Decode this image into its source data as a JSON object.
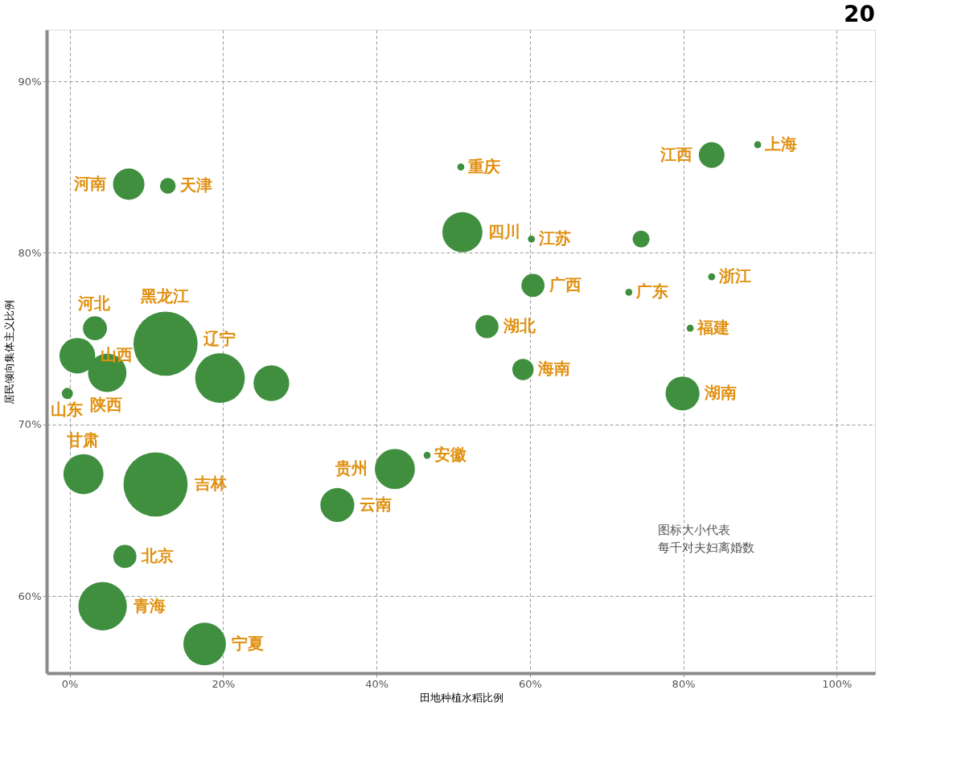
{
  "chart_data": {
    "type": "bubble",
    "title": "20",
    "xlabel": "田地种植水稻比例",
    "ylabel": "居民倾向集体主义比例",
    "x": [
      7.7,
      12.8,
      51.0,
      89.7,
      83.7,
      51.2,
      60.2,
      74.5,
      60.4,
      72.9,
      83.7,
      80.9,
      54.4,
      59.1,
      79.9,
      1.0,
      -0.3,
      3.3,
      4.9,
      12.5,
      19.6,
      26.3,
      46.6,
      42.4,
      34.9,
      1.8,
      11.2,
      7.2,
      4.3,
      17.6
    ],
    "values": [
      84.0,
      83.9,
      85.0,
      86.3,
      85.7,
      81.2,
      80.8,
      80.8,
      78.1,
      77.7,
      78.6,
      75.6,
      75.7,
      73.2,
      71.8,
      74.0,
      71.8,
      75.6,
      73.0,
      74.7,
      72.7,
      72.4,
      68.2,
      67.4,
      65.3,
      67.1,
      66.5,
      62.3,
      59.4,
      57.2
    ],
    "sizes": [
      0.24,
      0.06,
      0.012,
      0.012,
      0.16,
      0.39,
      0.012,
      0.07,
      0.13,
      0.012,
      0.012,
      0.012,
      0.13,
      0.11,
      0.28,
      0.31,
      0.03,
      0.14,
      0.36,
      1,
      0.6,
      0.31,
      0.012,
      0.39,
      0.28,
      0.39,
      1,
      0.13,
      0.57,
      0.44
    ],
    "color": "#3f8f3f",
    "grid": true,
    "xlim": [
      -3,
      105
    ],
    "ylim": [
      55.5,
      93
    ],
    "xticks": [
      {
        "value": 0,
        "label": "0%"
      },
      {
        "value": 20,
        "label": "20%"
      },
      {
        "value": 40,
        "label": "40%"
      },
      {
        "value": 60,
        "label": "60%"
      },
      {
        "value": 80,
        "label": "80%"
      },
      {
        "value": 100,
        "label": "100%"
      }
    ],
    "yticks": [
      {
        "value": 60,
        "label": "60%"
      },
      {
        "value": 70,
        "label": "70%"
      },
      {
        "value": 80,
        "label": "80%"
      },
      {
        "value": 90,
        "label": "90%"
      }
    ],
    "annotations": [
      {
        "text": "河南",
        "x": 7.7,
        "y": 84.0
      },
      {
        "text": "天津",
        "x": 12.8,
        "y": 83.9
      },
      {
        "text": "重庆",
        "x": 51.0,
        "y": 85.0
      },
      {
        "text": "上海",
        "x": 89.7,
        "y": 86.3
      },
      {
        "text": "江西",
        "x": 83.7,
        "y": 85.7
      },
      {
        "text": "四川",
        "x": 51.2,
        "y": 81.2
      },
      {
        "text": "江苏",
        "x": 60.2,
        "y": 80.8
      },
      {
        "text": "广西",
        "x": 60.4,
        "y": 78.1
      },
      {
        "text": "广东",
        "x": 72.9,
        "y": 77.7
      },
      {
        "text": "浙江",
        "x": 83.7,
        "y": 78.6
      },
      {
        "text": "福建",
        "x": 80.9,
        "y": 75.6
      },
      {
        "text": "湖北",
        "x": 54.4,
        "y": 75.7
      },
      {
        "text": "海南",
        "x": 59.1,
        "y": 73.2
      },
      {
        "text": "湖南",
        "x": 79.9,
        "y": 71.8
      },
      {
        "text": "山西",
        "x": 1.0,
        "y": 74.0
      },
      {
        "text": "山东",
        "x": -0.3,
        "y": 71.8
      },
      {
        "text": "河北",
        "x": 3.3,
        "y": 75.6
      },
      {
        "text": "陕西",
        "x": 4.9,
        "y": 73.0
      },
      {
        "text": "黑龙江",
        "x": 12.5,
        "y": 74.7
      },
      {
        "text": "辽宁",
        "x": 19.6,
        "y": 72.7
      },
      {
        "text": "安徽",
        "x": 46.6,
        "y": 68.2
      },
      {
        "text": "贵州",
        "x": 42.4,
        "y": 67.4
      },
      {
        "text": "云南",
        "x": 34.9,
        "y": 65.3
      },
      {
        "text": "甘肃",
        "x": 1.8,
        "y": 67.1
      },
      {
        "text": "吉林",
        "x": 11.2,
        "y": 66.5
      },
      {
        "text": "北京",
        "x": 7.2,
        "y": 62.3
      },
      {
        "text": "青海",
        "x": 4.3,
        "y": 59.4
      },
      {
        "text": "宁夏",
        "x": 17.6,
        "y": 57.2
      },
      "图标大小代表",
      "每千对夫妇离婚数"
    ]
  }
}
